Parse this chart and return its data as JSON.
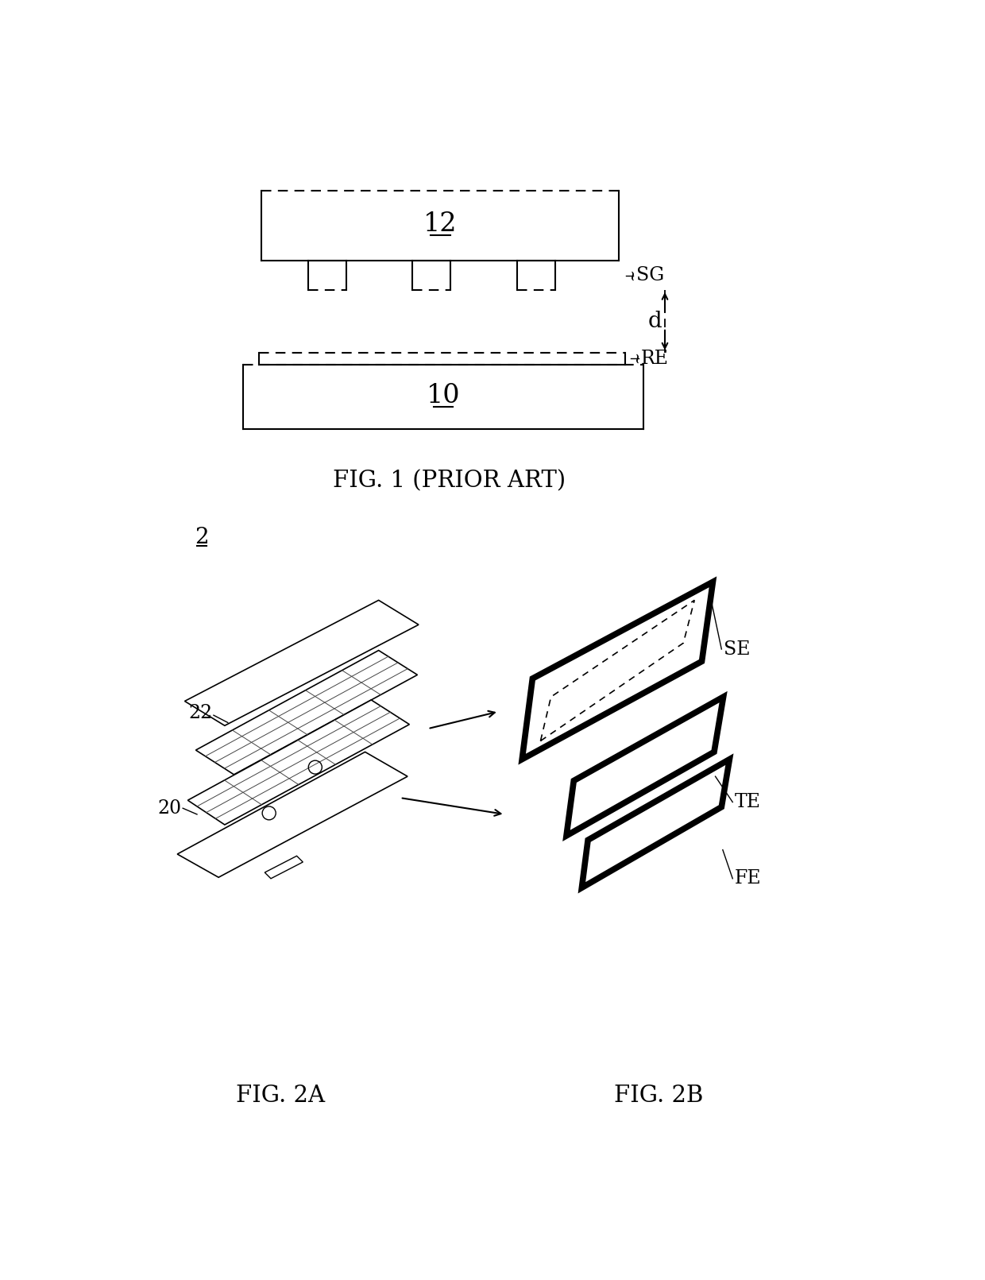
{
  "fig_width": 12.4,
  "fig_height": 16.11,
  "bg_color": "#ffffff",
  "fig1_title": "FIG. 1 (PRIOR ART)",
  "fig2a_title": "FIG. 2A",
  "fig2b_title": "FIG. 2B",
  "label_12": "12",
  "label_10": "10",
  "label_SG": "SG",
  "label_RE": "RE",
  "label_d": "d",
  "label_2": "2",
  "label_20": "20",
  "label_22": "22",
  "label_SE": "SE",
  "label_TE": "TE",
  "label_FE": "FE"
}
